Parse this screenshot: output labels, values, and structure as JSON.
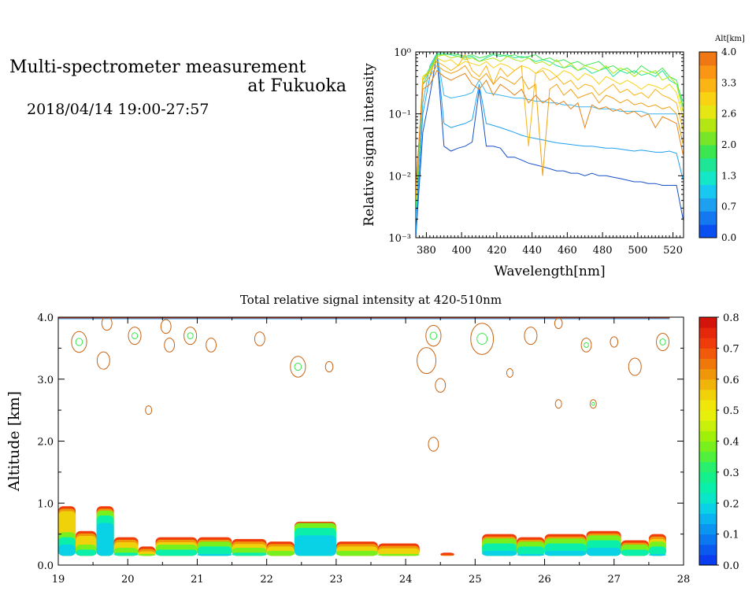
{
  "header": {
    "title_line1": "Multi-spectrometer measurement",
    "title_line2": "at Fukuoka",
    "datetime": "2018/04/14 19:00-27:57"
  },
  "chart_data": [
    {
      "type": "line",
      "name": "spectrum",
      "xlabel": "Wavelength[nm]",
      "ylabel": "Relative signal intensity",
      "yscale": "log",
      "xlim": [
        374,
        526
      ],
      "ylim": [
        0.001,
        1
      ],
      "xticks": [
        380,
        400,
        420,
        440,
        460,
        480,
        500,
        520
      ],
      "yticks": [
        {
          "value": 1,
          "label": "10⁰"
        },
        {
          "value": 0.1,
          "label": "10⁻¹"
        },
        {
          "value": 0.01,
          "label": "10⁻²"
        },
        {
          "value": 0.001,
          "label": "10⁻³"
        }
      ],
      "colorbar": {
        "title": "Alt[km]",
        "ticks": [
          "0.0",
          "0.7",
          "1.3",
          "2.0",
          "2.6",
          "3.3",
          "4.0"
        ],
        "colors": [
          "#0a4ff0",
          "#1478f0",
          "#1ea0f0",
          "#19c8f0",
          "#14e6c8",
          "#1ee696",
          "#3ce650",
          "#78e628",
          "#b4e614",
          "#e6e614",
          "#fad214",
          "#fab414",
          "#fa9614",
          "#f07814"
        ]
      },
      "x": [
        374,
        378,
        382,
        386,
        390,
        394,
        398,
        402,
        406,
        410,
        414,
        418,
        422,
        426,
        430,
        434,
        438,
        442,
        446,
        450,
        454,
        458,
        462,
        466,
        470,
        474,
        478,
        482,
        486,
        490,
        494,
        498,
        502,
        506,
        510,
        514,
        518,
        522,
        526
      ],
      "series": [
        {
          "color": "#1450c8",
          "values": [
            0.001,
            0.05,
            0.2,
            0.9,
            0.03,
            0.025,
            0.028,
            0.03,
            0.035,
            0.25,
            0.03,
            0.03,
            0.028,
            0.02,
            0.02,
            0.018,
            0.016,
            0.015,
            0.014,
            0.013,
            0.012,
            0.012,
            0.011,
            0.011,
            0.01,
            0.011,
            0.01,
            0.01,
            0.0095,
            0.009,
            0.0085,
            0.008,
            0.008,
            0.0075,
            0.0075,
            0.007,
            0.007,
            0.007,
            0.0018
          ]
        },
        {
          "color": "#1ea0f0",
          "values": [
            0.0012,
            0.1,
            0.4,
            0.95,
            0.07,
            0.06,
            0.065,
            0.07,
            0.08,
            0.3,
            0.07,
            0.065,
            0.06,
            0.055,
            0.05,
            0.045,
            0.042,
            0.04,
            0.038,
            0.036,
            0.034,
            0.033,
            0.032,
            0.031,
            0.03,
            0.03,
            0.029,
            0.028,
            0.028,
            0.027,
            0.026,
            0.025,
            0.026,
            0.025,
            0.024,
            0.024,
            0.025,
            0.023,
            0.008
          ]
        },
        {
          "color": "#3cb4f0",
          "values": [
            0.002,
            0.15,
            0.6,
            0.95,
            0.2,
            0.18,
            0.19,
            0.2,
            0.22,
            0.35,
            0.22,
            0.21,
            0.2,
            0.19,
            0.18,
            0.18,
            0.17,
            0.16,
            0.16,
            0.15,
            0.15,
            0.14,
            0.14,
            0.13,
            0.13,
            0.13,
            0.12,
            0.12,
            0.12,
            0.11,
            0.11,
            0.11,
            0.11,
            0.1,
            0.1,
            0.1,
            0.1,
            0.1,
            0.03
          ]
        },
        {
          "color": "#1ee696",
          "values": [
            0.003,
            0.3,
            0.5,
            0.95,
            0.95,
            0.9,
            0.85,
            0.8,
            0.85,
            0.7,
            0.8,
            0.9,
            0.85,
            0.9,
            0.8,
            0.85,
            0.8,
            0.7,
            0.75,
            0.7,
            0.6,
            0.55,
            0.6,
            0.5,
            0.55,
            0.45,
            0.5,
            0.55,
            0.4,
            0.5,
            0.45,
            0.5,
            0.42,
            0.45,
            0.4,
            0.5,
            0.35,
            0.3,
            0.15
          ]
        },
        {
          "color": "#3ce650",
          "values": [
            0.003,
            0.35,
            0.55,
            0.9,
            0.9,
            0.95,
            0.9,
            0.85,
            0.9,
            0.8,
            0.85,
            0.95,
            0.9,
            0.85,
            0.9,
            0.8,
            0.85,
            0.9,
            0.75,
            0.8,
            0.7,
            0.75,
            0.65,
            0.7,
            0.6,
            0.65,
            0.7,
            0.55,
            0.6,
            0.5,
            0.55,
            0.45,
            0.6,
            0.5,
            0.45,
            0.55,
            0.4,
            0.35,
            0.12
          ]
        },
        {
          "color": "#b4e614",
          "values": [
            0.004,
            0.4,
            0.5,
            0.85,
            0.9,
            0.8,
            0.85,
            0.75,
            0.8,
            0.7,
            0.75,
            0.8,
            0.7,
            0.85,
            0.75,
            0.7,
            0.8,
            0.65,
            0.7,
            0.6,
            0.75,
            0.55,
            0.65,
            0.5,
            0.6,
            0.55,
            0.5,
            0.6,
            0.45,
            0.55,
            0.5,
            0.4,
            0.5,
            0.45,
            0.5,
            0.35,
            0.4,
            0.3,
            0.1
          ]
        },
        {
          "color": "#fad214",
          "values": [
            0.004,
            0.4,
            0.45,
            0.8,
            0.7,
            0.75,
            0.6,
            0.7,
            0.65,
            0.6,
            0.7,
            0.55,
            0.65,
            0.6,
            0.5,
            0.6,
            0.55,
            0.45,
            0.55,
            0.5,
            0.4,
            0.5,
            0.45,
            0.35,
            0.45,
            0.4,
            0.3,
            0.4,
            0.35,
            0.3,
            0.35,
            0.3,
            0.25,
            0.3,
            0.28,
            0.25,
            0.3,
            0.22,
            0.08
          ]
        },
        {
          "color": "#fab414",
          "values": [
            0.005,
            0.35,
            0.5,
            0.7,
            0.6,
            0.5,
            0.6,
            0.9,
            0.5,
            0.4,
            0.6,
            0.3,
            0.55,
            0.4,
            0.5,
            0.6,
            0.03,
            0.45,
            0.5,
            0.35,
            0.4,
            0.3,
            0.35,
            0.25,
            0.3,
            0.28,
            0.2,
            0.25,
            0.3,
            0.22,
            0.25,
            0.2,
            0.22,
            0.18,
            0.25,
            0.2,
            0.18,
            0.15,
            0.05
          ]
        },
        {
          "color": "#f0a014",
          "values": [
            0.006,
            0.3,
            0.4,
            0.6,
            0.5,
            0.45,
            0.5,
            0.6,
            0.4,
            0.35,
            0.45,
            0.3,
            0.4,
            0.35,
            0.3,
            0.4,
            0.25,
            0.3,
            0.01,
            0.25,
            0.3,
            0.2,
            0.25,
            0.18,
            0.2,
            0.22,
            0.15,
            0.2,
            0.18,
            0.15,
            0.17,
            0.14,
            0.15,
            0.13,
            0.14,
            0.12,
            0.13,
            0.1,
            0.03
          ]
        },
        {
          "color": "#e68214",
          "values": [
            0.007,
            0.25,
            0.3,
            0.5,
            0.4,
            0.35,
            0.4,
            0.45,
            0.3,
            0.25,
            0.35,
            0.2,
            0.3,
            0.25,
            0.2,
            0.25,
            0.15,
            0.2,
            0.15,
            0.18,
            0.14,
            0.16,
            0.12,
            0.15,
            0.06,
            0.14,
            0.12,
            0.13,
            0.11,
            0.12,
            0.1,
            0.11,
            0.09,
            0.1,
            0.06,
            0.09,
            0.08,
            0.07,
            0.02
          ]
        }
      ]
    },
    {
      "type": "heatmap",
      "name": "altitude-time",
      "title": "Total relative signal intensity at 420-510nm",
      "xlabel": "",
      "ylabel": "Altitude [km]",
      "xlim": [
        19,
        28
      ],
      "ylim": [
        0,
        4
      ],
      "xticks": [
        19,
        20,
        21,
        22,
        23,
        24,
        25,
        26,
        27,
        28
      ],
      "yticks": [
        "0.0",
        "1.0",
        "2.0",
        "3.0",
        "4.0"
      ],
      "yticks_values": [
        0,
        1,
        2,
        3,
        4
      ],
      "colorbar": {
        "ticks": [
          "0.0",
          "0.1",
          "0.2",
          "0.3",
          "0.4",
          "0.5",
          "0.6",
          "0.7",
          "0.8"
        ],
        "colors": [
          "#0a3cf0",
          "#0a5af0",
          "#0a78f0",
          "#0a96f0",
          "#0ab4f0",
          "#0ad2e6",
          "#0ae6c8",
          "#0af0aa",
          "#14f08c",
          "#28f06e",
          "#50f03c",
          "#78f01e",
          "#a0f00a",
          "#c8f00a",
          "#e6f00a",
          "#f0e60a",
          "#f0d20a",
          "#f0b40a",
          "#f0960a",
          "#f0780a",
          "#f05a0a",
          "#f03c0a",
          "#e6280a",
          "#d2140a"
        ]
      },
      "boundary_layer": [
        {
          "t0": 19.0,
          "t1": 19.25,
          "top": 0.95,
          "core": 0.45
        },
        {
          "t0": 19.25,
          "t1": 19.55,
          "top": 0.55,
          "core": 0.25
        },
        {
          "t0": 19.55,
          "t1": 19.8,
          "top": 0.95,
          "core": 0.8
        },
        {
          "t0": 19.8,
          "t1": 20.15,
          "top": 0.45,
          "core": 0.2
        },
        {
          "t0": 20.15,
          "t1": 20.4,
          "top": 0.3,
          "core": 0.1
        },
        {
          "t0": 20.4,
          "t1": 21.0,
          "top": 0.45,
          "core": 0.25
        },
        {
          "t0": 21.0,
          "t1": 21.5,
          "top": 0.45,
          "core": 0.3
        },
        {
          "t0": 21.5,
          "t1": 22.0,
          "top": 0.42,
          "core": 0.2
        },
        {
          "t0": 22.0,
          "t1": 22.4,
          "top": 0.38,
          "core": 0.15
        },
        {
          "t0": 22.4,
          "t1": 23.0,
          "top": 0.7,
          "core": 0.6
        },
        {
          "t0": 23.0,
          "t1": 23.6,
          "top": 0.38,
          "core": 0.15
        },
        {
          "t0": 23.6,
          "t1": 24.2,
          "top": 0.35,
          "core": 0.1
        },
        {
          "t0": 24.5,
          "t1": 24.7,
          "top": 0.2,
          "core": 0.05
        },
        {
          "t0": 25.1,
          "t1": 25.6,
          "top": 0.5,
          "core": 0.35
        },
        {
          "t0": 25.6,
          "t1": 26.0,
          "top": 0.45,
          "core": 0.3
        },
        {
          "t0": 26.0,
          "t1": 26.6,
          "top": 0.5,
          "core": 0.35
        },
        {
          "t0": 26.6,
          "t1": 27.1,
          "top": 0.55,
          "core": 0.4
        },
        {
          "t0": 27.1,
          "t1": 27.5,
          "top": 0.4,
          "core": 0.25
        },
        {
          "t0": 27.5,
          "t1": 27.75,
          "top": 0.5,
          "core": 0.3
        }
      ],
      "cloud_contours": [
        {
          "t": 19.3,
          "alt": 3.6,
          "r": 0.12
        },
        {
          "t": 19.65,
          "alt": 3.3,
          "r": 0.1
        },
        {
          "t": 19.7,
          "alt": 3.9,
          "r": 0.08
        },
        {
          "t": 20.1,
          "alt": 3.7,
          "r": 0.1
        },
        {
          "t": 20.55,
          "alt": 3.85,
          "r": 0.08
        },
        {
          "t": 20.6,
          "alt": 3.55,
          "r": 0.08
        },
        {
          "t": 20.9,
          "alt": 3.7,
          "r": 0.1
        },
        {
          "t": 21.2,
          "alt": 3.55,
          "r": 0.08
        },
        {
          "t": 21.9,
          "alt": 3.65,
          "r": 0.08
        },
        {
          "t": 22.45,
          "alt": 3.2,
          "r": 0.12
        },
        {
          "t": 22.9,
          "alt": 3.2,
          "r": 0.06
        },
        {
          "t": 24.3,
          "alt": 3.3,
          "r": 0.15
        },
        {
          "t": 24.4,
          "alt": 3.7,
          "r": 0.12
        },
        {
          "t": 24.5,
          "alt": 2.9,
          "r": 0.08
        },
        {
          "t": 24.4,
          "alt": 1.95,
          "r": 0.08
        },
        {
          "t": 25.1,
          "alt": 3.65,
          "r": 0.18
        },
        {
          "t": 25.8,
          "alt": 3.7,
          "r": 0.1
        },
        {
          "t": 26.2,
          "alt": 3.9,
          "r": 0.06
        },
        {
          "t": 26.6,
          "alt": 3.55,
          "r": 0.08
        },
        {
          "t": 27.0,
          "alt": 3.6,
          "r": 0.06
        },
        {
          "t": 27.3,
          "alt": 3.2,
          "r": 0.1
        },
        {
          "t": 27.7,
          "alt": 3.6,
          "r": 0.1
        },
        {
          "t": 20.3,
          "alt": 2.5,
          "r": 0.05
        },
        {
          "t": 26.2,
          "alt": 2.6,
          "r": 0.05
        },
        {
          "t": 26.7,
          "alt": 2.6,
          "r": 0.05
        },
        {
          "t": 25.5,
          "alt": 3.1,
          "r": 0.05
        }
      ]
    }
  ]
}
